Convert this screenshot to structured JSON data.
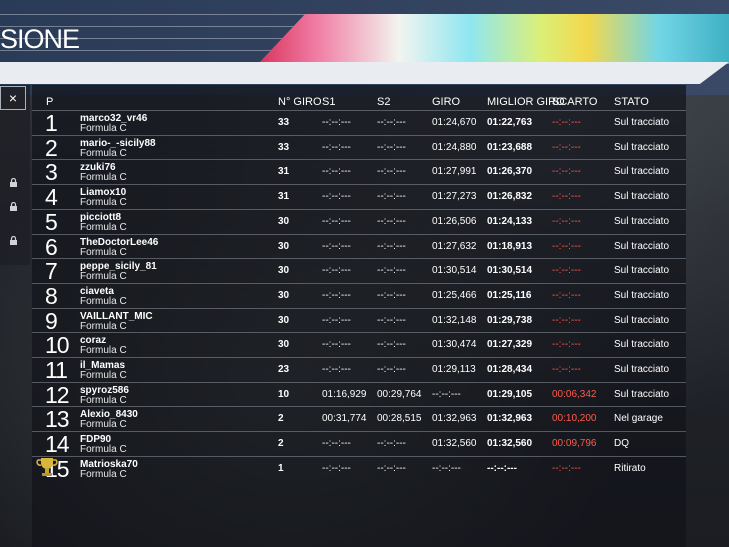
{
  "header": {
    "title": "SIONE"
  },
  "sidebar": {
    "close_label": "×"
  },
  "columns": {
    "pos": "P",
    "laps": "N° GIRO",
    "s1": "S1",
    "s2": "S2",
    "giro": "GIRO",
    "best": "MIGLIOR GIRO",
    "gap": "SCARTO",
    "stato": "STATO"
  },
  "rows": [
    {
      "pos": "1",
      "name": "marco32_vr46",
      "cls": "Formula C",
      "laps": "33",
      "s1": "--:--:---",
      "s2": "--:--:---",
      "giro": "01:24,670",
      "best": "01:22,763",
      "gap": "--:--:---",
      "stato": "Sul tracciato"
    },
    {
      "pos": "2",
      "name": "mario-_-sicily88",
      "cls": "Formula C",
      "laps": "33",
      "s1": "--:--:---",
      "s2": "--:--:---",
      "giro": "01:24,880",
      "best": "01:23,688",
      "gap": "--:--:---",
      "stato": "Sul tracciato"
    },
    {
      "pos": "3",
      "name": "zzuki76",
      "cls": "Formula C",
      "laps": "31",
      "s1": "--:--:---",
      "s2": "--:--:---",
      "giro": "01:27,991",
      "best": "01:26,370",
      "gap": "--:--:---",
      "stato": "Sul tracciato"
    },
    {
      "pos": "4",
      "name": "Liamox10",
      "cls": "Formula C",
      "laps": "31",
      "s1": "--:--:---",
      "s2": "--:--:---",
      "giro": "01:27,273",
      "best": "01:26,832",
      "gap": "--:--:---",
      "stato": "Sul tracciato"
    },
    {
      "pos": "5",
      "name": "picciott8",
      "cls": "Formula C",
      "laps": "30",
      "s1": "--:--:---",
      "s2": "--:--:---",
      "giro": "01:26,506",
      "best": "01:24,133",
      "gap": "--:--:---",
      "stato": "Sul tracciato"
    },
    {
      "pos": "6",
      "name": "TheDoctorLee46",
      "cls": "Formula C",
      "laps": "30",
      "s1": "--:--:---",
      "s2": "--:--:---",
      "giro": "01:27,632",
      "best": "01:18,913",
      "gap": "--:--:---",
      "stato": "Sul tracciato"
    },
    {
      "pos": "7",
      "name": "peppe_sicily_81",
      "cls": "Formula C",
      "laps": "30",
      "s1": "--:--:---",
      "s2": "--:--:---",
      "giro": "01:30,514",
      "best": "01:30,514",
      "gap": "--:--:---",
      "stato": "Sul tracciato"
    },
    {
      "pos": "8",
      "name": "ciaveta",
      "cls": "Formula C",
      "laps": "30",
      "s1": "--:--:---",
      "s2": "--:--:---",
      "giro": "01:25,466",
      "best": "01:25,116",
      "gap": "--:--:---",
      "stato": "Sul tracciato"
    },
    {
      "pos": "9",
      "name": "VAILLANT_MIC",
      "cls": "Formula C",
      "laps": "30",
      "s1": "--:--:---",
      "s2": "--:--:---",
      "giro": "01:32,148",
      "best": "01:29,738",
      "gap": "--:--:---",
      "stato": "Sul tracciato"
    },
    {
      "pos": "10",
      "name": "coraz",
      "cls": "Formula C",
      "laps": "30",
      "s1": "--:--:---",
      "s2": "--:--:---",
      "giro": "01:30,474",
      "best": "01:27,329",
      "gap": "--:--:---",
      "stato": "Sul tracciato"
    },
    {
      "pos": "11",
      "name": "il_Mamas",
      "cls": "Formula C",
      "laps": "23",
      "s1": "--:--:---",
      "s2": "--:--:---",
      "giro": "01:29,113",
      "best": "01:28,434",
      "gap": "--:--:---",
      "stato": "Sul tracciato"
    },
    {
      "pos": "12",
      "name": "spyroz586",
      "cls": "Formula C",
      "laps": "10",
      "s1": "01:16,929",
      "s2": "00:29,764",
      "giro": "--:--:---",
      "best": "01:29,105",
      "gap": "00:06,342",
      "stato": "Sul tracciato"
    },
    {
      "pos": "13",
      "name": "Alexio_8430",
      "cls": "Formula C",
      "laps": "2",
      "s1": "00:31,774",
      "s2": "00:28,515",
      "giro": "01:32,963",
      "best": "01:32,963",
      "gap": "00:10,200",
      "stato": "Nel garage"
    },
    {
      "pos": "14",
      "name": "FDP90",
      "cls": "Formula C",
      "laps": "2",
      "s1": "--:--:---",
      "s2": "--:--:---",
      "giro": "01:32,560",
      "best": "01:32,560",
      "gap": "00:09,796",
      "stato": "DQ"
    },
    {
      "pos": "15",
      "name": "Matrioska70",
      "cls": "Formula C",
      "laps": "1",
      "s1": "--:--:---",
      "s2": "--:--:---",
      "giro": "--:--:---",
      "best": "--:--:---",
      "gap": "--:--:---",
      "stato": "Ritirato"
    }
  ]
}
